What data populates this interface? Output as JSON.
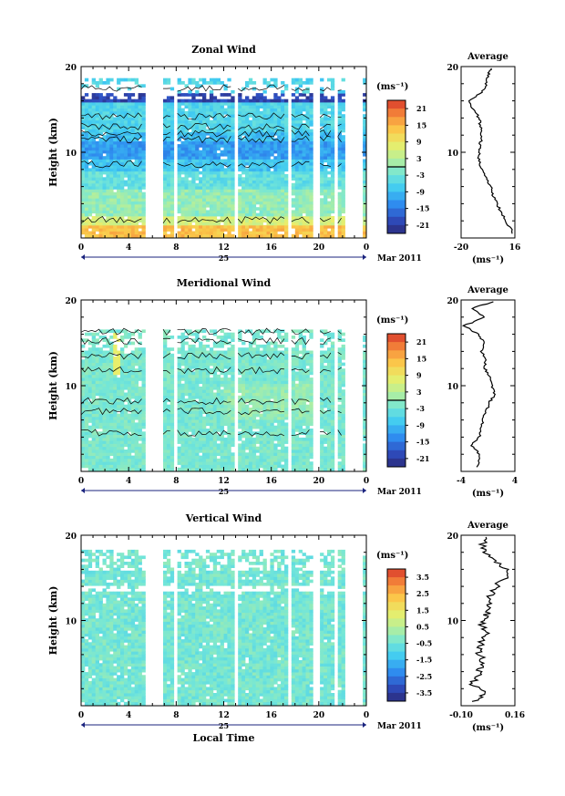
{
  "chart_data": [
    {
      "type": "heatmap",
      "title": "Zonal Wind",
      "ylabel": "Height (km)",
      "ylim": [
        0,
        20
      ],
      "yticks": [
        "20",
        "10"
      ],
      "xlim": [
        0,
        24
      ],
      "xticks": [
        "0",
        "4",
        "8",
        "12",
        "16",
        "20",
        "0"
      ],
      "date_day": "25",
      "date_month": "Mar 2011",
      "colorbar": {
        "unit": "(ms⁻¹)",
        "ticks": [
          "21",
          "15",
          "9",
          "3",
          "-3",
          "-9",
          "-15",
          "-21"
        ],
        "range": [
          -24,
          24
        ]
      },
      "average_profile": {
        "title": "Average",
        "xlim": [
          -20,
          16
        ],
        "xticks": [
          "-20",
          "16"
        ],
        "yticks": [
          "20",
          "10"
        ],
        "unit": "(ms⁻¹)",
        "heights": [
          0.5,
          2,
          3,
          4,
          5,
          6,
          7,
          8,
          9,
          10,
          11,
          12,
          13,
          14,
          15,
          16,
          17,
          18,
          19,
          19.8
        ],
        "values": [
          15,
          10,
          7,
          4,
          1,
          0,
          -3,
          -6,
          -8,
          -8,
          -7,
          -6,
          -7,
          -8,
          -12,
          -15,
          -6,
          -3,
          -2,
          0
        ]
      }
    },
    {
      "type": "heatmap",
      "title": "Meridional Wind",
      "ylabel": "Height (km)",
      "ylim": [
        0,
        20
      ],
      "yticks": [
        "20",
        "10"
      ],
      "xlim": [
        0,
        24
      ],
      "xticks": [
        "0",
        "4",
        "8",
        "12",
        "16",
        "20",
        "0"
      ],
      "date_day": "25",
      "date_month": "Mar 2011",
      "colorbar": {
        "unit": "(ms⁻¹)",
        "ticks": [
          "21",
          "15",
          "9",
          "3",
          "-3",
          "-9",
          "-15",
          "-21"
        ],
        "range": [
          -24,
          24
        ]
      },
      "average_profile": {
        "title": "Average",
        "xlim": [
          -4,
          4
        ],
        "xticks": [
          "-4",
          "4"
        ],
        "yticks": [
          "20",
          "10"
        ],
        "unit": "(ms⁻¹)",
        "heights": [
          0.5,
          2,
          3,
          4,
          5,
          6,
          7,
          8,
          9,
          10,
          11,
          12,
          13,
          14,
          15,
          16,
          17,
          18,
          19,
          19.8
        ],
        "values": [
          -1.5,
          -1.2,
          -2.5,
          -1.3,
          -1.0,
          -0.8,
          -0.3,
          0.2,
          1.0,
          0.6,
          0.2,
          -0.5,
          -0.3,
          -1.0,
          -0.6,
          -1.5,
          -3.5,
          -0.5,
          -2.5,
          0.8
        ]
      }
    },
    {
      "type": "heatmap",
      "title": "Vertical Wind",
      "ylabel": "Height (km)",
      "ylim": [
        0,
        20
      ],
      "yticks": [
        "20",
        "10"
      ],
      "xlim": [
        0,
        24
      ],
      "xticks": [
        "0",
        "4",
        "8",
        "12",
        "16",
        "20",
        "0"
      ],
      "date_day": "25",
      "date_month": "Mar 2011",
      "xlabel": "Local Time",
      "colorbar": {
        "unit": "(ms⁻¹)",
        "ticks": [
          "3.5",
          "2.5",
          "1.5",
          "0.5",
          "-0.5",
          "-1.5",
          "-2.5",
          "-3.5"
        ],
        "range": [
          -4,
          4
        ]
      },
      "average_profile": {
        "title": "Average",
        "xlim": [
          -0.1,
          0.16
        ],
        "xticks": [
          "-0.10",
          "0.16"
        ],
        "yticks": [
          "20",
          "10"
        ],
        "unit": "(ms⁻¹)",
        "heights": [
          0.5,
          1.5,
          2.5,
          3.5,
          4.5,
          5.5,
          6.5,
          7.5,
          8.5,
          9.5,
          10.5,
          11.5,
          12.5,
          13.5,
          14.5,
          15.5,
          16.5,
          17.5,
          18.5,
          19.8
        ],
        "values": [
          -0.03,
          0.02,
          -0.05,
          -0.02,
          -0.01,
          0.0,
          -0.02,
          0.0,
          0.02,
          0.0,
          0.02,
          0.04,
          0.03,
          0.06,
          0.08,
          0.14,
          0.09,
          0.03,
          0.0,
          0.02
        ]
      }
    }
  ]
}
